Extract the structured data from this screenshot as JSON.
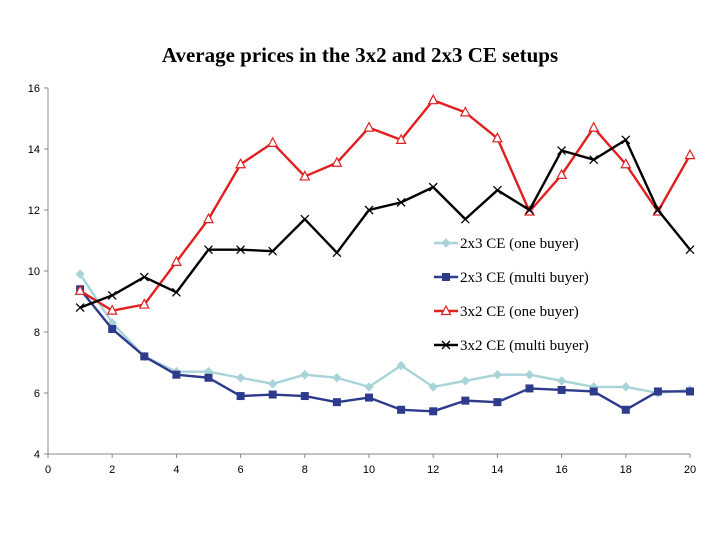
{
  "chart_data": {
    "type": "line",
    "title": "Average prices in the 3x2 and 2x3 CE setups",
    "xlabel": "",
    "ylabel": "",
    "xlim": [
      0,
      20
    ],
    "ylim": [
      4,
      16
    ],
    "x_ticks": [
      0,
      2,
      4,
      6,
      8,
      10,
      12,
      14,
      16,
      18,
      20
    ],
    "y_ticks": [
      4,
      6,
      8,
      10,
      12,
      14,
      16
    ],
    "grid": false,
    "legend_position": "right",
    "x": [
      1,
      2,
      3,
      4,
      5,
      6,
      7,
      8,
      9,
      10,
      11,
      12,
      13,
      14,
      15,
      16,
      17,
      18,
      19,
      20
    ],
    "series": [
      {
        "name": "2x3 CE (one buyer)",
        "color": "#a8d4d8",
        "marker": "diamond",
        "values": [
          9.9,
          8.3,
          7.2,
          6.7,
          6.7,
          6.5,
          6.3,
          6.6,
          6.5,
          6.2,
          6.9,
          6.2,
          6.4,
          6.6,
          6.6,
          6.4,
          6.2,
          6.2,
          6.0,
          6.1
        ]
      },
      {
        "name": "2x3 CE (multi buyer)",
        "color": "#2e3a8c",
        "marker": "square",
        "values": [
          9.4,
          8.1,
          7.2,
          6.6,
          6.5,
          5.9,
          5.95,
          5.9,
          5.7,
          5.85,
          5.45,
          5.4,
          5.75,
          5.7,
          6.15,
          6.1,
          6.05,
          5.45,
          6.05,
          6.05
        ]
      },
      {
        "name": "3x2 CE (one buyer)",
        "color": "#e02020",
        "marker": "triangle",
        "values": [
          9.35,
          8.7,
          8.9,
          10.3,
          11.7,
          13.5,
          14.2,
          13.1,
          13.55,
          14.7,
          14.3,
          15.6,
          15.2,
          14.35,
          11.95,
          13.15,
          14.7,
          13.5,
          11.95,
          13.8
        ]
      },
      {
        "name": "3x2 CE (multi buyer)",
        "color": "#000000",
        "marker": "x",
        "values": [
          8.8,
          9.2,
          9.8,
          9.3,
          10.7,
          10.7,
          10.65,
          11.7,
          10.6,
          12.0,
          12.25,
          12.75,
          11.7,
          12.65,
          12.0,
          13.95,
          13.65,
          14.3,
          12.0,
          10.7
        ]
      }
    ]
  }
}
